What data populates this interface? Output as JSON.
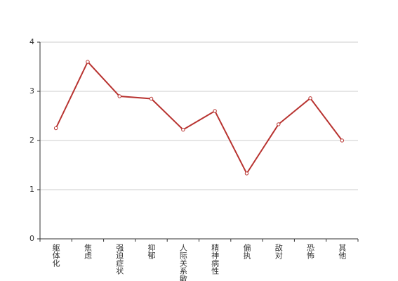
{
  "chart_data": {
    "type": "line",
    "categories": [
      "躯体化",
      "焦虑",
      "强迫症状",
      "抑郁",
      "人际关系敏感",
      "精神病性",
      "偏执",
      "敌对",
      "恐怖",
      "其他"
    ],
    "values": [
      2.25,
      3.6,
      2.9,
      2.85,
      2.22,
      2.6,
      1.33,
      2.33,
      2.86,
      2.0
    ],
    "color": "#b83330",
    "ylim": [
      0,
      4
    ],
    "yticks": [
      0,
      1,
      2,
      3,
      4
    ],
    "grid": true
  }
}
